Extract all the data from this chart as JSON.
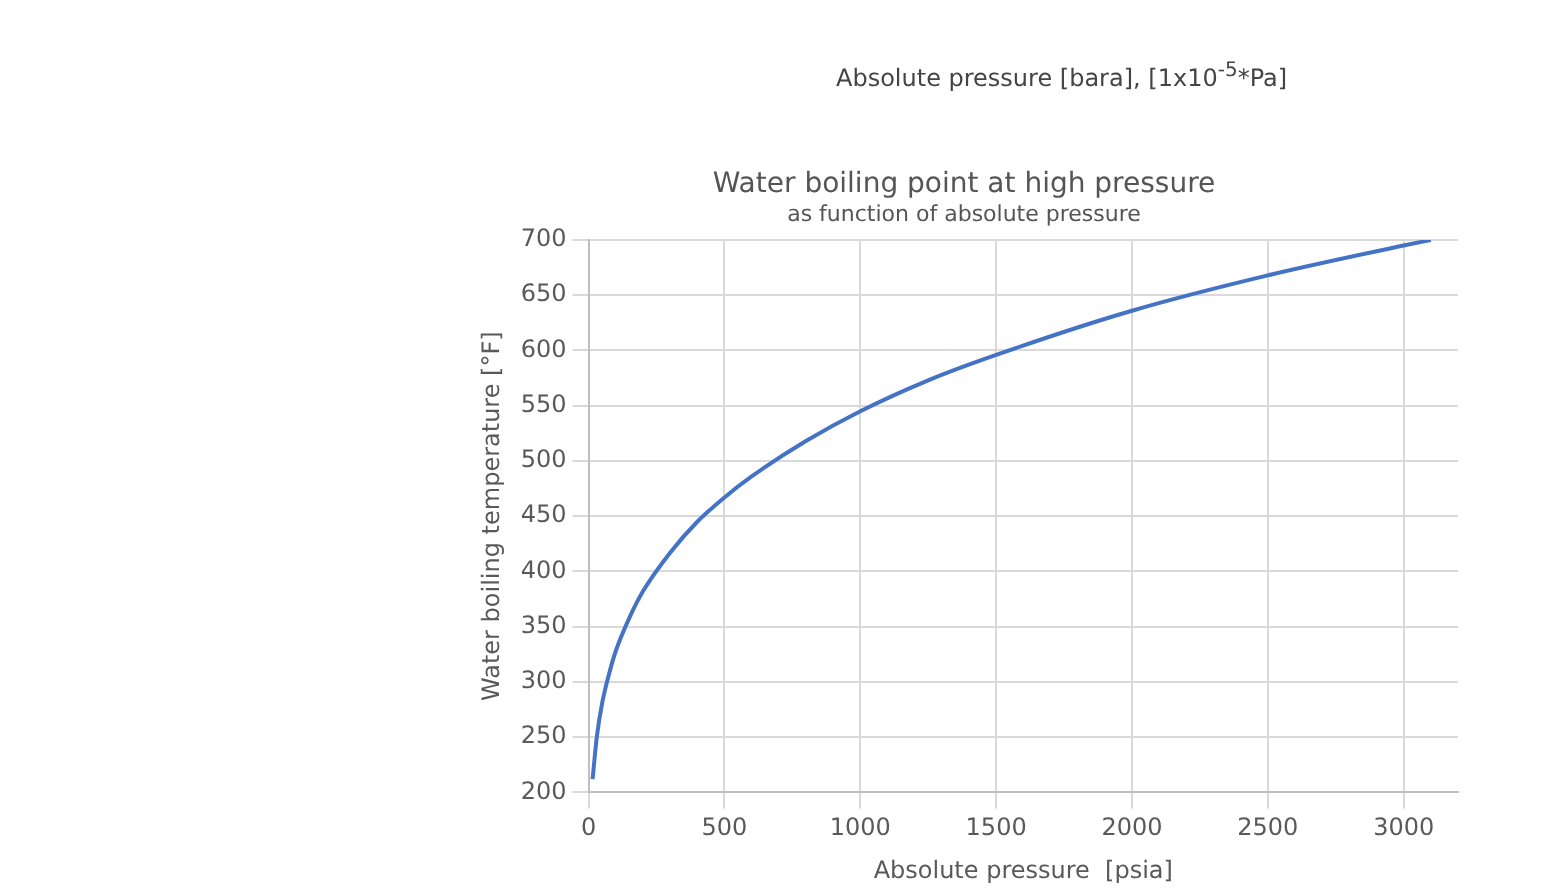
{
  "chart_data": {
    "type": "line",
    "title": "Water boiling point at high pressure",
    "subtitle": "as function of absolute pressure",
    "xlabel": "Absolute pressure  [psia]",
    "ylabel": "Water boiling temperature [°F]",
    "annotations": [
      "Absolute pressure [bara], [1x10$^{-5}$*Pa]"
    ],
    "series": [
      {
        "color": "#4472c4",
        "x": [
          14.7,
          30,
          50,
          75,
          100,
          150,
          200,
          300,
          400,
          500,
          600,
          800,
          1000,
          1250,
          1500,
          2000,
          2500,
          3000,
          3100
        ],
        "values": [
          212,
          250,
          281,
          307,
          328,
          358,
          382,
          417,
          445,
          467,
          486,
          518,
          545,
          573,
          596,
          636,
          668,
          695,
          700
        ]
      }
    ],
    "xlim": [
      0,
      3200
    ],
    "xticks": [
      0,
      500,
      1000,
      1500,
      2000,
      2500,
      3000
    ],
    "ylim": [
      200,
      700
    ],
    "yticks": [
      200,
      250,
      300,
      350,
      400,
      450,
      500,
      550,
      600,
      650,
      700
    ],
    "grid": true,
    "marker": "none",
    "line_style": "solid"
  }
}
